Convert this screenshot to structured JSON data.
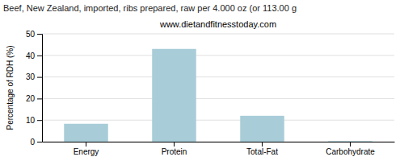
{
  "chart_data": {
    "type": "bar",
    "title": "Beef, New Zealand, imported, ribs prepared, raw per 4.000 oz (or 113.00 g",
    "subtitle": "www.dietandfitnesstoday.com",
    "ylabel": "Percentage of RDH (%)",
    "categories": [
      "Energy",
      "Protein",
      "Total-Fat",
      "Carbohydrate"
    ],
    "values": [
      8.3,
      43.0,
      12.0,
      0.3
    ],
    "color": "#a8cdd8",
    "ylim": [
      0,
      50
    ],
    "yticks": [
      0,
      10,
      20,
      30,
      40,
      50
    ],
    "grid": true
  }
}
